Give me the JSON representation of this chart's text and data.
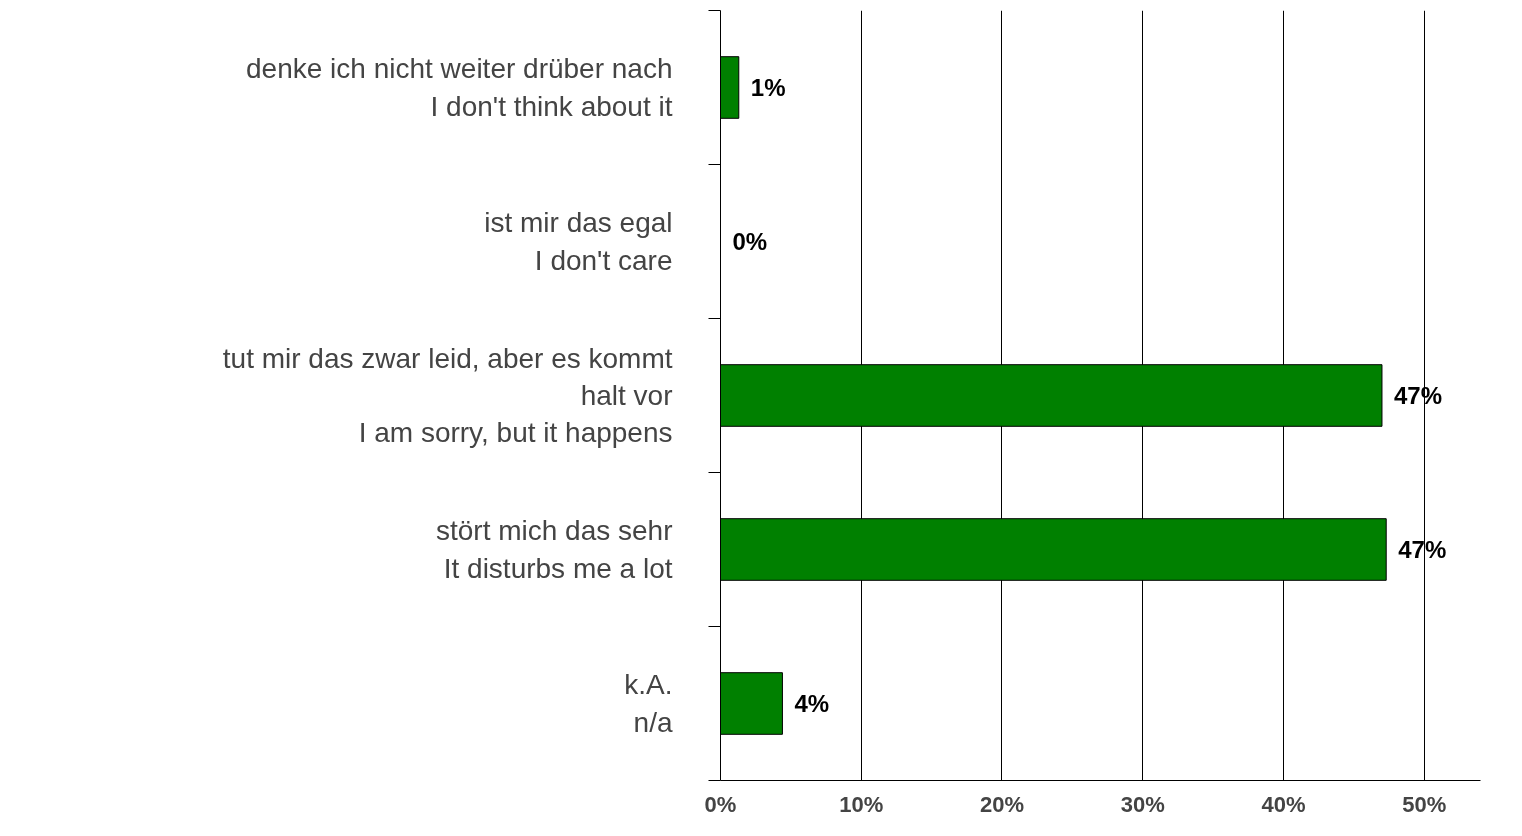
{
  "chart_data": {
    "type": "bar",
    "orientation": "horizontal",
    "categories": [
      "denke ich nicht weiter drüber nach\nI don't think about it",
      "ist mir das egal\nI don't care",
      "tut mir das zwar leid, aber es kommt\nhalt vor\nI am sorry, but it happens",
      "stört mich das sehr\nIt disturbs me a lot",
      "k.A.\nn/a"
    ],
    "values": [
      1.3,
      0,
      47.0,
      47.3,
      4.4
    ],
    "value_labels": [
      "1%",
      "0%",
      "47%",
      "47%",
      "4%"
    ],
    "color": "#008000",
    "xlim": [
      0,
      54
    ],
    "xticks": [
      {
        "value": 0,
        "label": "0%"
      },
      {
        "value": 10,
        "label": "10%"
      },
      {
        "value": 20,
        "label": "20%"
      },
      {
        "value": 30,
        "label": "30%"
      },
      {
        "value": 40,
        "label": "40%"
      },
      {
        "value": 50,
        "label": "50%"
      }
    ],
    "grid": "x"
  }
}
